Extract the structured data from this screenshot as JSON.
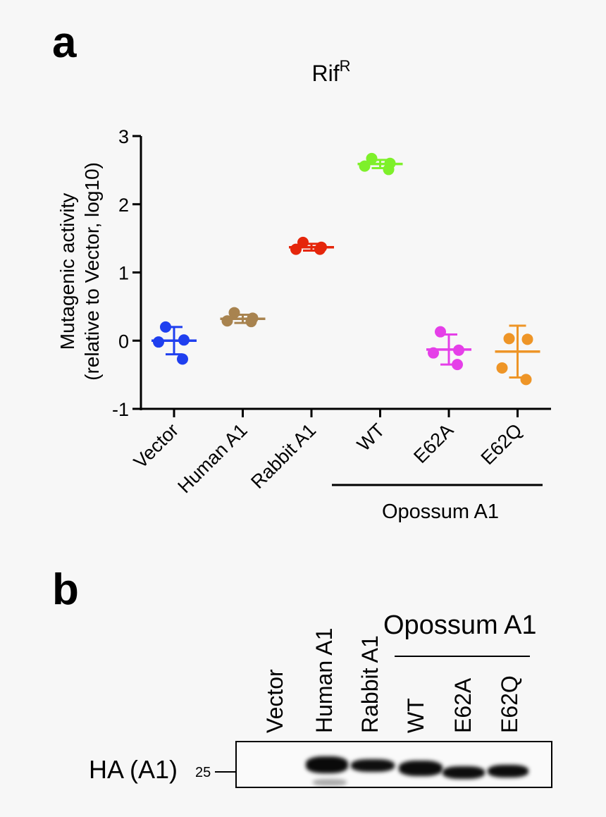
{
  "panel_a": {
    "letter": "a"
  },
  "panel_b": {
    "letter": "b"
  },
  "chart_data": {
    "type": "scatter",
    "title": "Rif",
    "title_superscript": "R",
    "ylabel_line1": "Mutagenic activity",
    "ylabel_line2": "(relative to Vector, log10)",
    "ylim": [
      -1,
      3
    ],
    "yticks": [
      -1,
      0,
      1,
      2,
      3
    ],
    "categories": [
      "Vector",
      "Human A1",
      "Rabbit A1",
      "WT",
      "E62A",
      "E62Q"
    ],
    "group_label": "Opossum A1",
    "grid": false,
    "series": [
      {
        "category": "Vector",
        "color": "#1f3fef",
        "mean": 0.0,
        "sd": 0.2,
        "points": [
          0.2,
          0.01,
          -0.02,
          -0.27
        ]
      },
      {
        "category": "Human A1",
        "color": "#a8834f",
        "mean": 0.32,
        "sd": 0.06,
        "points": [
          0.41,
          0.33,
          0.29,
          0.28
        ]
      },
      {
        "category": "Rabbit A1",
        "color": "#e5260b",
        "mean": 1.37,
        "sd": 0.05,
        "points": [
          1.44,
          1.37,
          1.34,
          1.34
        ]
      },
      {
        "category": "WT",
        "color": "#7ef02a",
        "mean": 2.59,
        "sd": 0.06,
        "points": [
          2.67,
          2.6,
          2.56,
          2.51
        ]
      },
      {
        "category": "E62A",
        "color": "#e53fe8",
        "mean": -0.13,
        "sd": 0.22,
        "points": [
          0.13,
          -0.14,
          -0.18,
          -0.35
        ]
      },
      {
        "category": "E62Q",
        "color": "#ee9527",
        "mean": -0.16,
        "sd": 0.38,
        "points": [
          0.03,
          0.02,
          -0.4,
          -0.57
        ]
      }
    ]
  },
  "blot": {
    "group_label": "Opossum A1",
    "lanes": [
      "Vector",
      "Human A1",
      "Rabbit A1",
      "WT",
      "E62A",
      "E62Q"
    ],
    "row_label": "HA (A1)",
    "marker": "25",
    "band_intensity": [
      0.0,
      1.0,
      0.85,
      0.95,
      0.9,
      0.92
    ]
  }
}
